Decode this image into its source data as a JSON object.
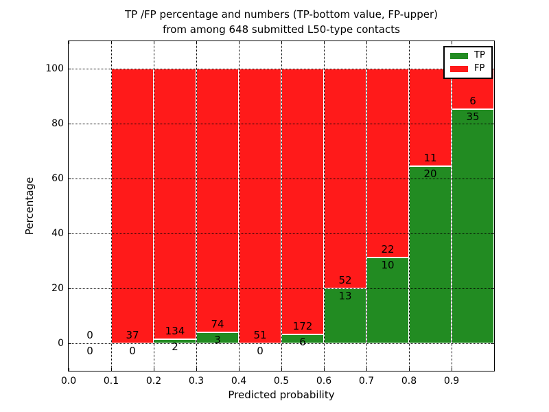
{
  "title": {
    "line1": "TP /FP percentage and numbers (TP-bottom value, FP-upper)",
    "line2": "from among 648 submitted L50-type contacts"
  },
  "axes": {
    "ylabel": "Percentage",
    "xlabel": "Predicted probability"
  },
  "legend": {
    "position": "upper right",
    "items": [
      {
        "label": "TP",
        "color": "#228B22"
      },
      {
        "label": "FP",
        "color": "#FF1A1A"
      }
    ]
  },
  "chart_data": {
    "type": "bar",
    "stacked": true,
    "normalized_to_percent": 100,
    "title": "TP /FP percentage and numbers (TP-bottom value, FP-upper) from among 648 submitted L50-type contacts",
    "xlabel": "Predicted probability",
    "ylabel": "Percentage",
    "xlim": [
      0,
      1
    ],
    "ylim": [
      -10,
      110
    ],
    "grid": "dotted, drawn above bars",
    "legend_position": "upper right",
    "bin_width": 0.1,
    "series": [
      {
        "name": "TP",
        "color": "#228B22",
        "stack_order": "bottom"
      },
      {
        "name": "FP",
        "color": "#FF1A1A",
        "stack_order": "top"
      }
    ],
    "yticks": [
      0,
      20,
      40,
      60,
      80,
      100
    ],
    "ytick_labels": [
      "0",
      "20",
      "40",
      "60",
      "80",
      "100"
    ],
    "xticks": [
      0,
      0.1,
      0.2,
      0.3,
      0.4,
      0.5,
      0.6,
      0.7,
      0.8,
      0.9
    ],
    "xtick_labels": [
      "0.0",
      "0.1",
      "0.2",
      "0.3",
      "0.4",
      "0.5",
      "0.6",
      "0.7",
      "0.8",
      "0.9"
    ],
    "bins": [
      {
        "range": [
          0.0,
          0.1
        ],
        "tp": 0,
        "fp": 0
      },
      {
        "range": [
          0.1,
          0.2
        ],
        "tp": 0,
        "fp": 37
      },
      {
        "range": [
          0.2,
          0.3
        ],
        "tp": 2,
        "fp": 134
      },
      {
        "range": [
          0.3,
          0.4
        ],
        "tp": 3,
        "fp": 74
      },
      {
        "range": [
          0.4,
          0.5
        ],
        "tp": 0,
        "fp": 51
      },
      {
        "range": [
          0.5,
          0.6
        ],
        "tp": 6,
        "fp": 172
      },
      {
        "range": [
          0.6,
          0.7
        ],
        "tp": 13,
        "fp": 52
      },
      {
        "range": [
          0.7,
          0.8
        ],
        "tp": 10,
        "fp": 22
      },
      {
        "range": [
          0.8,
          0.9
        ],
        "tp": 20,
        "fp": 11
      },
      {
        "range": [
          0.9,
          1.0
        ],
        "tp": 35,
        "fp": 6
      }
    ],
    "total_contacts": 648
  }
}
